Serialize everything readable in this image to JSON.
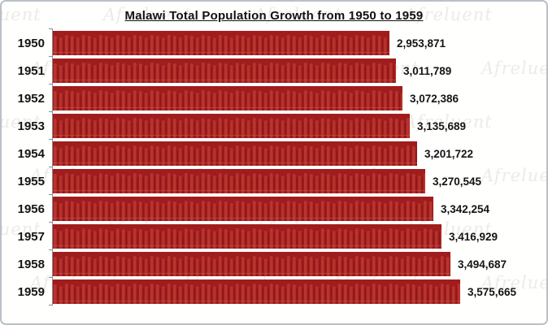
{
  "title": "Malawi Total Population Growth from 1950 to 1959",
  "watermark": {
    "text": "Afreluent"
  },
  "colors": {
    "bar_base": "#A11C1C",
    "bar_figure": "#BC3A33",
    "axis": "#8D8D8D",
    "text": "#141414",
    "frame_border": "#B9C0C7",
    "watermark": "#EBEBE7"
  },
  "chart_data": {
    "type": "bar",
    "orientation": "horizontal",
    "title": "Malawi Total Population Growth from 1950 to 1959",
    "categories": [
      "1950",
      "1951",
      "1952",
      "1953",
      "1954",
      "1955",
      "1956",
      "1957",
      "1958",
      "1959"
    ],
    "values": [
      2953871,
      3011789,
      3072386,
      3135689,
      3201722,
      3270545,
      3342254,
      3416929,
      3494687,
      3575665
    ],
    "value_labels": [
      "2,953,871",
      "3,011,789",
      "3,072,386",
      "3,135,689",
      "3,201,722",
      "3,270,545",
      "3,342,254",
      "3,416,929",
      "3,494,687",
      "3,575,665"
    ],
    "xlabel": "",
    "ylabel": "",
    "xlim": [
      0,
      3600000
    ],
    "grid": false,
    "legend": false,
    "bar_texture": "crowd-of-people-pattern"
  }
}
